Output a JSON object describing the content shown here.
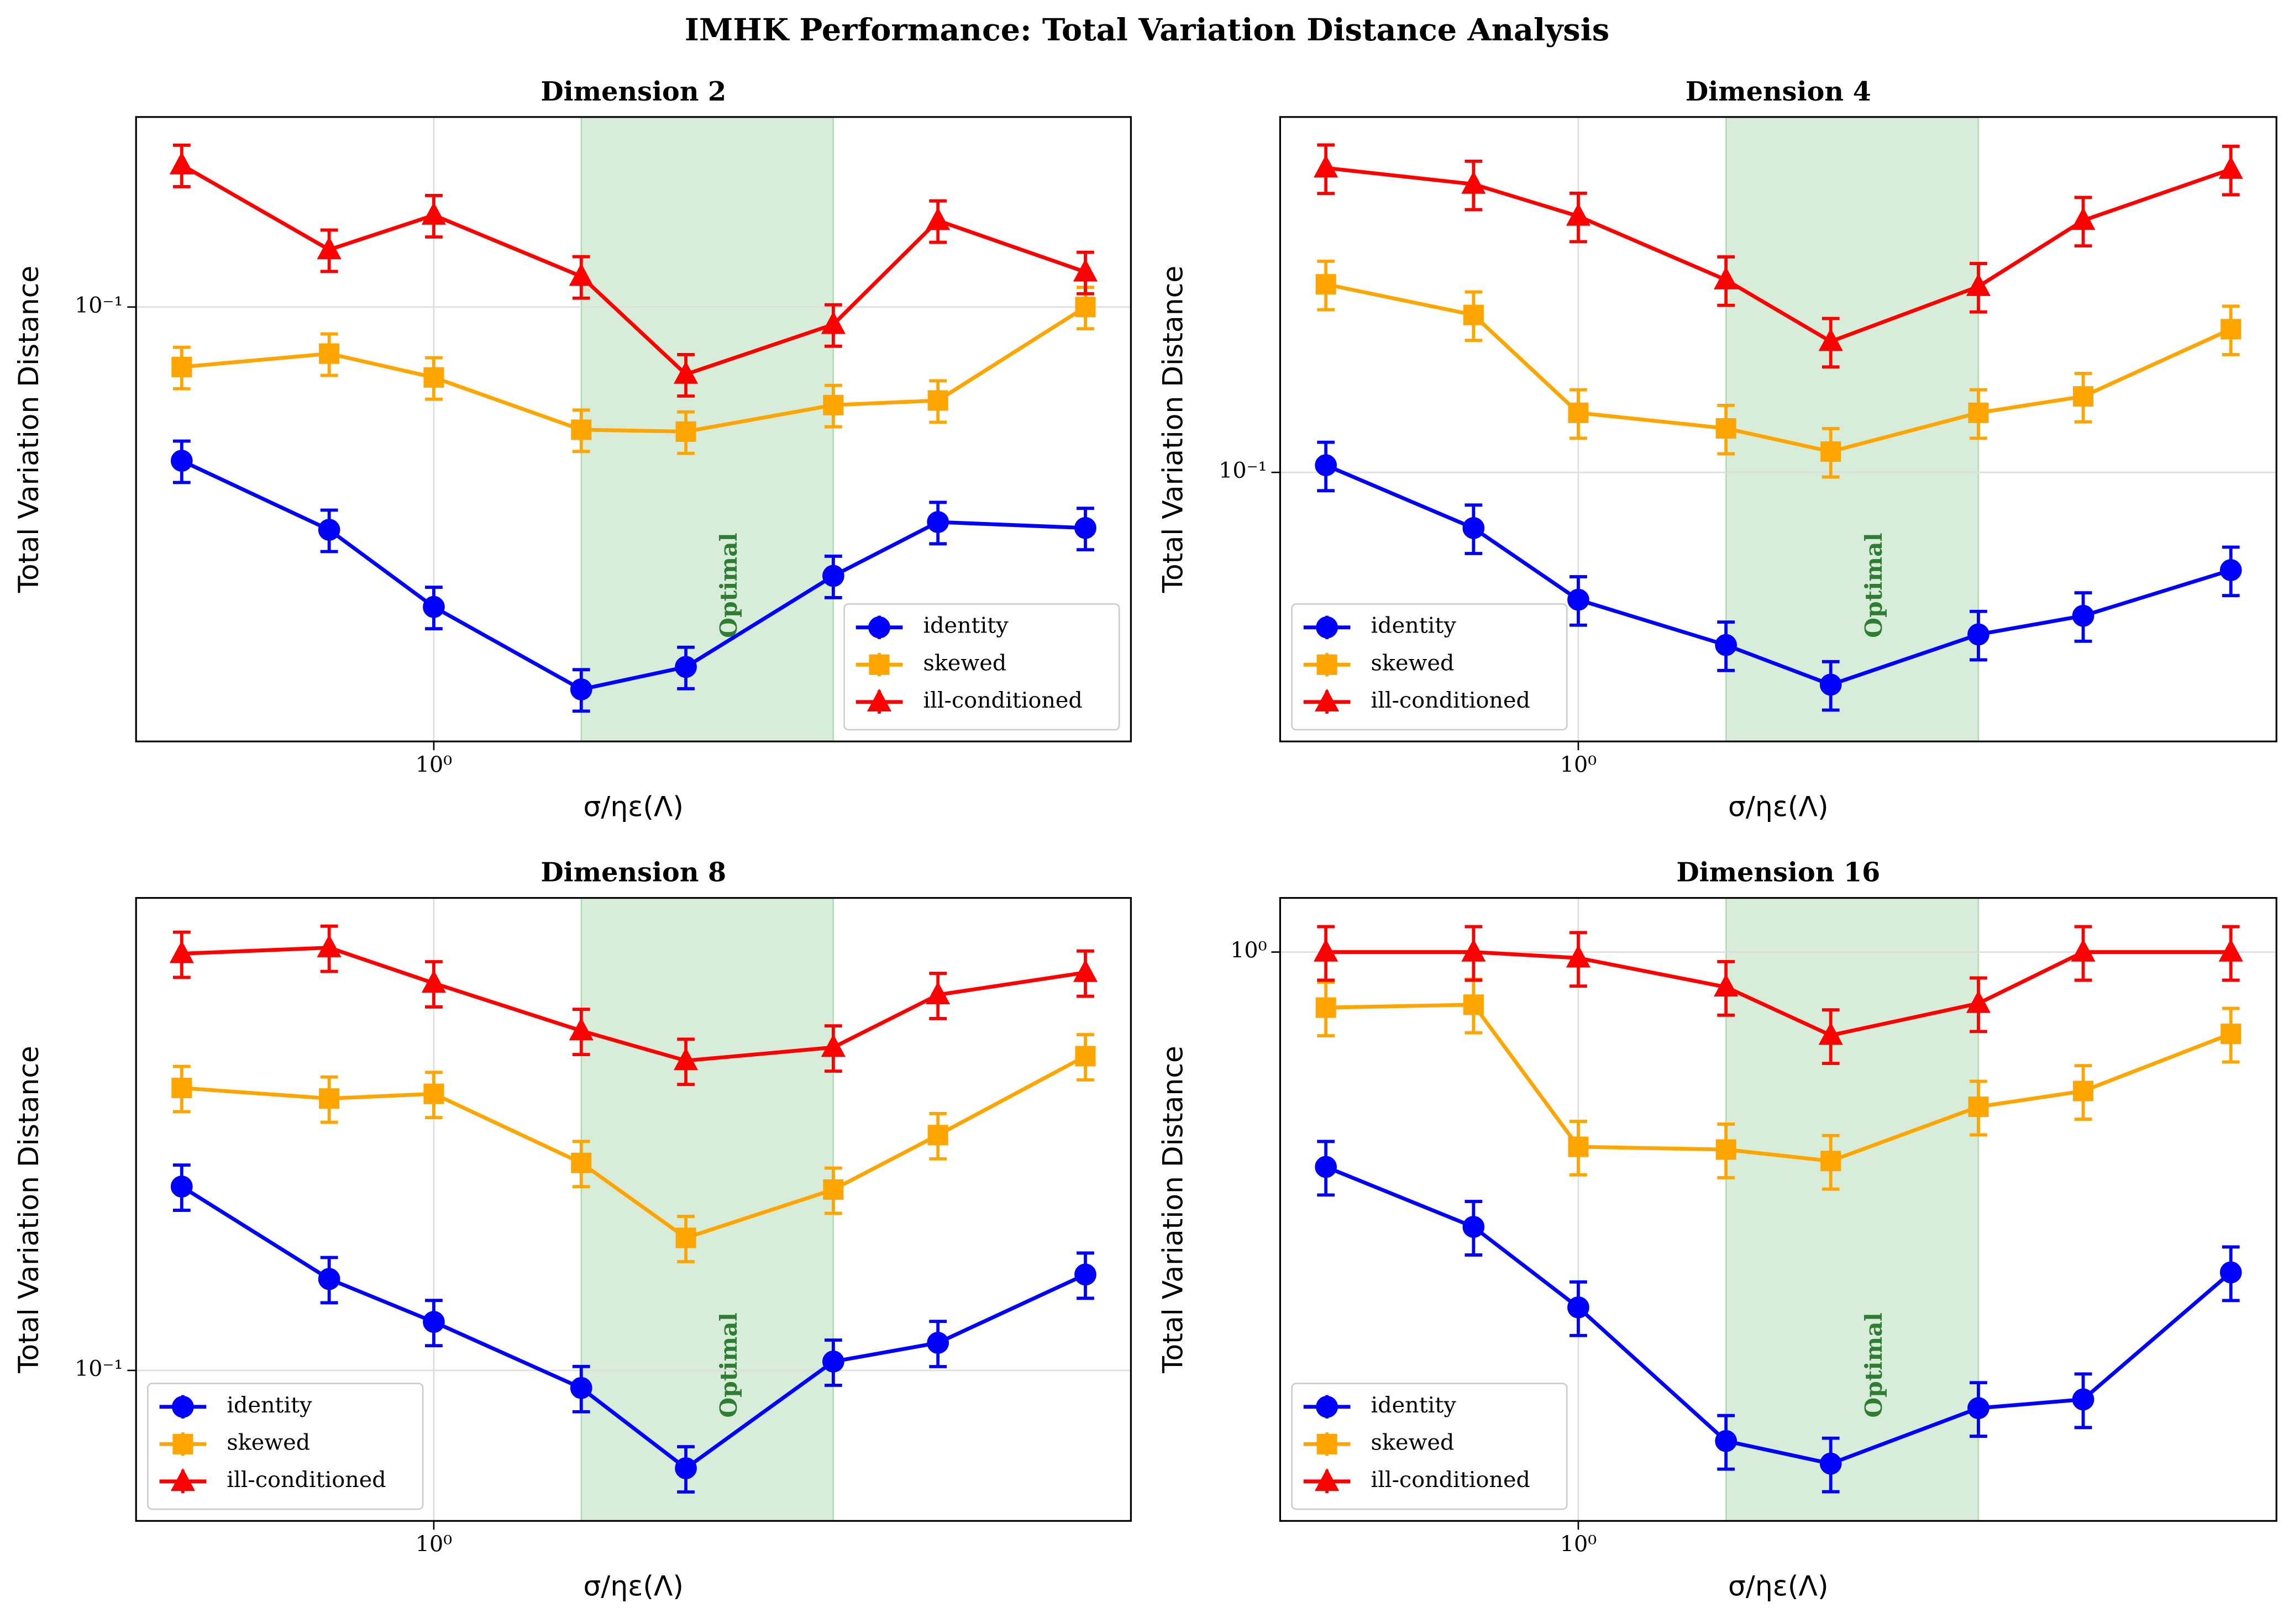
{
  "title": "IMHK Performance: Total Variation Distance Analysis",
  "chart_data": [
    {
      "type": "line",
      "title": "Dimension 2",
      "xlabel": "σ/ηε(Λ)",
      "ylabel": "Total Variation Distance",
      "xscale": "log",
      "yscale": "log",
      "grid": true,
      "legend_loc": "lower right",
      "x": [
        0.5,
        0.75,
        1,
        1.5,
        2,
        3,
        4,
        6
      ],
      "xlim": [
        0.441,
        6.8
      ],
      "xticks": [
        {
          "value": 1,
          "label": "10⁰"
        }
      ],
      "ylim": [
        0.0122,
        0.251
      ],
      "yticks": [
        {
          "value": 0.1,
          "label": "10⁻¹"
        }
      ],
      "shaded_region": {
        "x": [
          1.5,
          3
        ],
        "label": "Optimal",
        "color": "#4caf50"
      },
      "series": [
        {
          "name": "identity",
          "color": "#0000ff",
          "marker": "circle",
          "values": [
            0.0475,
            0.034,
            0.0234,
            0.0157,
            0.0175,
            0.0272,
            0.0353,
            0.0343
          ],
          "errors": [
            0.00475,
            0.0034,
            0.00234,
            0.00157,
            0.00175,
            0.00272,
            0.00353,
            0.00343
          ]
        },
        {
          "name": "skewed",
          "color": "#ffa500",
          "marker": "square",
          "values": [
            0.0748,
            0.0798,
            0.0711,
            0.0552,
            0.0547,
            0.0622,
            0.0636,
            0.1
          ],
          "errors": [
            0.00748,
            0.00798,
            0.00711,
            0.00552,
            0.00547,
            0.00622,
            0.00636,
            0.01
          ]
        },
        {
          "name": "ill-conditioned",
          "color": "#ff0000",
          "marker": "triangle",
          "values": [
            0.199,
            0.132,
            0.156,
            0.116,
            0.0722,
            0.0919,
            0.152,
            0.1185
          ],
          "errors": [
            0.0199,
            0.0132,
            0.0156,
            0.0116,
            0.00722,
            0.00919,
            0.0152,
            0.01185
          ]
        }
      ]
    },
    {
      "type": "line",
      "title": "Dimension 4",
      "xlabel": "σ/ηε(Λ)",
      "ylabel": "Total Variation Distance",
      "xscale": "log",
      "yscale": "log",
      "grid": true,
      "legend_loc": "lower left",
      "x": [
        0.5,
        0.75,
        1,
        1.5,
        2,
        3,
        4,
        6
      ],
      "xlim": [
        0.441,
        6.8
      ],
      "xticks": [
        {
          "value": 1,
          "label": "10⁰"
        }
      ],
      "ylim": [
        0.0328,
        0.436
      ],
      "yticks": [
        {
          "value": 0.1,
          "label": "10⁻¹"
        }
      ],
      "shaded_region": {
        "x": [
          1.5,
          3
        ],
        "label": "Optimal",
        "color": "#4caf50"
      },
      "series": [
        {
          "name": "identity",
          "color": "#0000ff",
          "marker": "circle",
          "values": [
            0.103,
            0.0794,
            0.059,
            0.0489,
            0.0415,
            0.0511,
            0.0552,
            0.0667
          ],
          "errors": [
            0.0103,
            0.00794,
            0.0059,
            0.00489,
            0.00415,
            0.00511,
            0.00552,
            0.00667
          ]
        },
        {
          "name": "skewed",
          "color": "#ffa500",
          "marker": "square",
          "values": [
            0.218,
            0.192,
            0.128,
            0.12,
            0.109,
            0.128,
            0.137,
            0.181
          ],
          "errors": [
            0.0218,
            0.0192,
            0.0128,
            0.012,
            0.0109,
            0.0128,
            0.0137,
            0.0181
          ]
        },
        {
          "name": "ill-conditioned",
          "color": "#ff0000",
          "marker": "triangle",
          "values": [
            0.353,
            0.33,
            0.289,
            0.222,
            0.172,
            0.216,
            0.284,
            0.351
          ],
          "errors": [
            0.0353,
            0.033,
            0.0289,
            0.0222,
            0.0172,
            0.0216,
            0.0284,
            0.0351
          ]
        }
      ]
    },
    {
      "type": "line",
      "title": "Dimension 8",
      "xlabel": "σ/ηε(Λ)",
      "ylabel": "Total Variation Distance",
      "xscale": "log",
      "yscale": "log",
      "grid": true,
      "legend_loc": "lower left",
      "x": [
        0.5,
        0.75,
        1,
        1.5,
        2,
        3,
        4,
        6
      ],
      "xlim": [
        0.441,
        6.8
      ],
      "xticks": [
        {
          "value": 1,
          "label": "10⁰"
        }
      ],
      "ylim": [
        0.0513,
        0.813
      ],
      "yticks": [
        {
          "value": 0.1,
          "label": "10⁻¹"
        }
      ],
      "shaded_region": {
        "x": [
          1.5,
          3
        ],
        "label": "Optimal",
        "color": "#4caf50"
      },
      "series": [
        {
          "name": "identity",
          "color": "#0000ff",
          "marker": "circle",
          "values": [
            0.226,
            0.15,
            0.124,
            0.0925,
            0.0648,
            0.104,
            0.113,
            0.153
          ],
          "errors": [
            0.0226,
            0.015,
            0.0124,
            0.00925,
            0.00648,
            0.0104,
            0.0113,
            0.0153
          ]
        },
        {
          "name": "skewed",
          "color": "#ffa500",
          "marker": "square",
          "values": [
            0.35,
            0.334,
            0.341,
            0.251,
            0.18,
            0.223,
            0.284,
            0.403
          ],
          "errors": [
            0.035,
            0.0334,
            0.0341,
            0.0251,
            0.018,
            0.0223,
            0.0284,
            0.0403
          ]
        },
        {
          "name": "ill-conditioned",
          "color": "#ff0000",
          "marker": "triangle",
          "values": [
            0.635,
            0.652,
            0.557,
            0.451,
            0.395,
            0.419,
            0.529,
            0.584
          ],
          "errors": [
            0.0635,
            0.0652,
            0.0557,
            0.0451,
            0.0395,
            0.0419,
            0.0529,
            0.0584
          ]
        }
      ]
    },
    {
      "type": "line",
      "title": "Dimension 16",
      "xlabel": "σ/ηε(Λ)",
      "ylabel": "Total Variation Distance",
      "xscale": "log",
      "yscale": "log",
      "grid": true,
      "legend_loc": "lower left",
      "x": [
        0.5,
        0.75,
        1,
        1.5,
        2,
        3,
        4,
        6
      ],
      "xlim": [
        0.441,
        6.8
      ],
      "xticks": [
        {
          "value": 1,
          "label": "10⁰"
        }
      ],
      "ylim": [
        0.1186,
        1.225
      ],
      "yticks": [
        {
          "value": 1,
          "label": "10⁰"
        }
      ],
      "shaded_region": {
        "x": [
          1.5,
          3
        ],
        "label": "Optimal",
        "color": "#4caf50"
      },
      "series": [
        {
          "name": "identity",
          "color": "#0000ff",
          "marker": "circle",
          "values": [
            0.447,
            0.357,
            0.264,
            0.16,
            0.147,
            0.181,
            0.187,
            0.301
          ],
          "errors": [
            0.0447,
            0.0357,
            0.0264,
            0.016,
            0.0147,
            0.0181,
            0.0187,
            0.0301
          ]
        },
        {
          "name": "skewed",
          "color": "#ffa500",
          "marker": "square",
          "values": [
            0.812,
            0.821,
            0.482,
            0.477,
            0.457,
            0.56,
            0.594,
            0.736
          ],
          "errors": [
            0.0812,
            0.0821,
            0.0482,
            0.0477,
            0.0457,
            0.056,
            0.0594,
            0.0736
          ]
        },
        {
          "name": "ill-conditioned",
          "color": "#ff0000",
          "marker": "triangle",
          "values": [
            1,
            1,
            0.978,
            0.877,
            0.732,
            0.825,
            1,
            1
          ],
          "errors": [
            0.1,
            0.1,
            0.0978,
            0.0877,
            0.0732,
            0.0825,
            0.1,
            0.1
          ]
        }
      ]
    }
  ]
}
